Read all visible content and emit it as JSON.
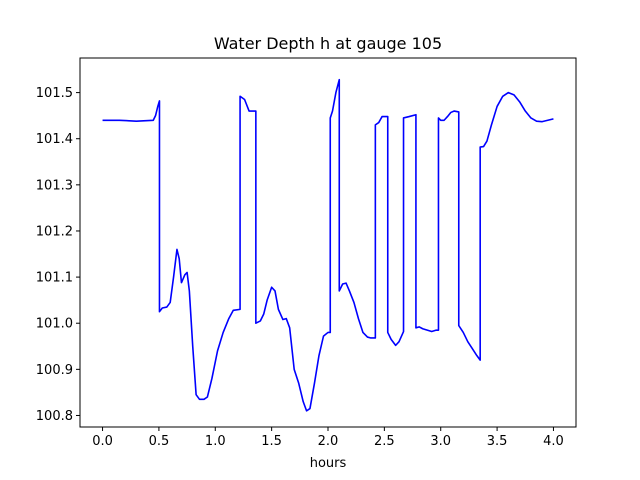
{
  "chart_data": {
    "type": "line",
    "title": "Water Depth h at gauge 105",
    "xlabel": "hours",
    "ylabel": "",
    "xlim": [
      -0.2,
      4.2
    ],
    "ylim": [
      100.775,
      101.575
    ],
    "xticks": [
      0.0,
      0.5,
      1.0,
      1.5,
      2.0,
      2.5,
      3.0,
      3.5,
      4.0
    ],
    "xtick_labels": [
      "0.0",
      "0.5",
      "1.0",
      "1.5",
      "2.0",
      "2.5",
      "3.0",
      "3.5",
      "4.0"
    ],
    "yticks": [
      100.8,
      100.9,
      101.0,
      101.1,
      101.2,
      101.3,
      101.4,
      101.5
    ],
    "ytick_labels": [
      "100.8",
      "100.9",
      "101.0",
      "101.1",
      "101.2",
      "101.3",
      "101.4",
      "101.5"
    ],
    "grid": false,
    "legend": "none",
    "series": [
      {
        "color": "#0000ff",
        "points": [
          [
            0.0,
            101.44
          ],
          [
            0.15,
            101.44
          ],
          [
            0.3,
            101.438
          ],
          [
            0.45,
            101.44
          ],
          [
            0.47,
            101.45
          ],
          [
            0.49,
            101.47
          ],
          [
            0.505,
            101.482
          ],
          [
            0.505,
            101.025
          ],
          [
            0.53,
            101.033
          ],
          [
            0.57,
            101.035
          ],
          [
            0.6,
            101.045
          ],
          [
            0.63,
            101.1
          ],
          [
            0.66,
            101.16
          ],
          [
            0.68,
            101.14
          ],
          [
            0.7,
            101.088
          ],
          [
            0.73,
            101.105
          ],
          [
            0.75,
            101.11
          ],
          [
            0.77,
            101.07
          ],
          [
            0.8,
            100.95
          ],
          [
            0.83,
            100.845
          ],
          [
            0.86,
            100.835
          ],
          [
            0.9,
            100.835
          ],
          [
            0.93,
            100.84
          ],
          [
            0.97,
            100.88
          ],
          [
            1.02,
            100.94
          ],
          [
            1.07,
            100.98
          ],
          [
            1.12,
            101.01
          ],
          [
            1.16,
            101.028
          ],
          [
            1.22,
            101.03
          ],
          [
            1.22,
            101.492
          ],
          [
            1.26,
            101.485
          ],
          [
            1.3,
            101.46
          ],
          [
            1.36,
            101.46
          ],
          [
            1.36,
            101.0
          ],
          [
            1.4,
            101.005
          ],
          [
            1.43,
            101.02
          ],
          [
            1.46,
            101.05
          ],
          [
            1.5,
            101.078
          ],
          [
            1.53,
            101.07
          ],
          [
            1.56,
            101.03
          ],
          [
            1.6,
            101.008
          ],
          [
            1.63,
            101.01
          ],
          [
            1.66,
            100.99
          ],
          [
            1.7,
            100.9
          ],
          [
            1.74,
            100.87
          ],
          [
            1.78,
            100.83
          ],
          [
            1.81,
            100.81
          ],
          [
            1.84,
            100.815
          ],
          [
            1.88,
            100.87
          ],
          [
            1.92,
            100.93
          ],
          [
            1.96,
            100.972
          ],
          [
            2.0,
            100.98
          ],
          [
            2.02,
            100.98
          ],
          [
            2.02,
            101.445
          ],
          [
            2.04,
            101.46
          ],
          [
            2.07,
            101.5
          ],
          [
            2.1,
            101.528
          ],
          [
            2.1,
            101.07
          ],
          [
            2.13,
            101.085
          ],
          [
            2.16,
            101.087
          ],
          [
            2.19,
            101.07
          ],
          [
            2.23,
            101.045
          ],
          [
            2.27,
            101.01
          ],
          [
            2.31,
            100.98
          ],
          [
            2.35,
            100.97
          ],
          [
            2.38,
            100.968
          ],
          [
            2.42,
            100.968
          ],
          [
            2.42,
            101.43
          ],
          [
            2.45,
            101.435
          ],
          [
            2.48,
            101.448
          ],
          [
            2.53,
            101.448
          ],
          [
            2.53,
            100.98
          ],
          [
            2.56,
            100.965
          ],
          [
            2.6,
            100.952
          ],
          [
            2.63,
            100.96
          ],
          [
            2.67,
            100.982
          ],
          [
            2.67,
            101.445
          ],
          [
            2.72,
            101.448
          ],
          [
            2.78,
            101.452
          ],
          [
            2.78,
            100.99
          ],
          [
            2.81,
            100.992
          ],
          [
            2.84,
            100.988
          ],
          [
            2.88,
            100.985
          ],
          [
            2.92,
            100.982
          ],
          [
            2.96,
            100.985
          ],
          [
            2.98,
            100.985
          ],
          [
            2.98,
            101.445
          ],
          [
            3.0,
            101.44
          ],
          [
            3.03,
            101.44
          ],
          [
            3.06,
            101.448
          ],
          [
            3.09,
            101.457
          ],
          [
            3.12,
            101.46
          ],
          [
            3.16,
            101.458
          ],
          [
            3.16,
            100.995
          ],
          [
            3.2,
            100.98
          ],
          [
            3.24,
            100.96
          ],
          [
            3.28,
            100.945
          ],
          [
            3.32,
            100.93
          ],
          [
            3.35,
            100.92
          ],
          [
            3.35,
            101.382
          ],
          [
            3.38,
            101.383
          ],
          [
            3.41,
            101.395
          ],
          [
            3.45,
            101.43
          ],
          [
            3.5,
            101.47
          ],
          [
            3.55,
            101.492
          ],
          [
            3.6,
            101.5
          ],
          [
            3.65,
            101.495
          ],
          [
            3.7,
            101.48
          ],
          [
            3.75,
            101.46
          ],
          [
            3.8,
            101.445
          ],
          [
            3.85,
            101.438
          ],
          [
            3.9,
            101.437
          ],
          [
            3.95,
            101.44
          ],
          [
            4.0,
            101.443
          ]
        ]
      }
    ]
  }
}
